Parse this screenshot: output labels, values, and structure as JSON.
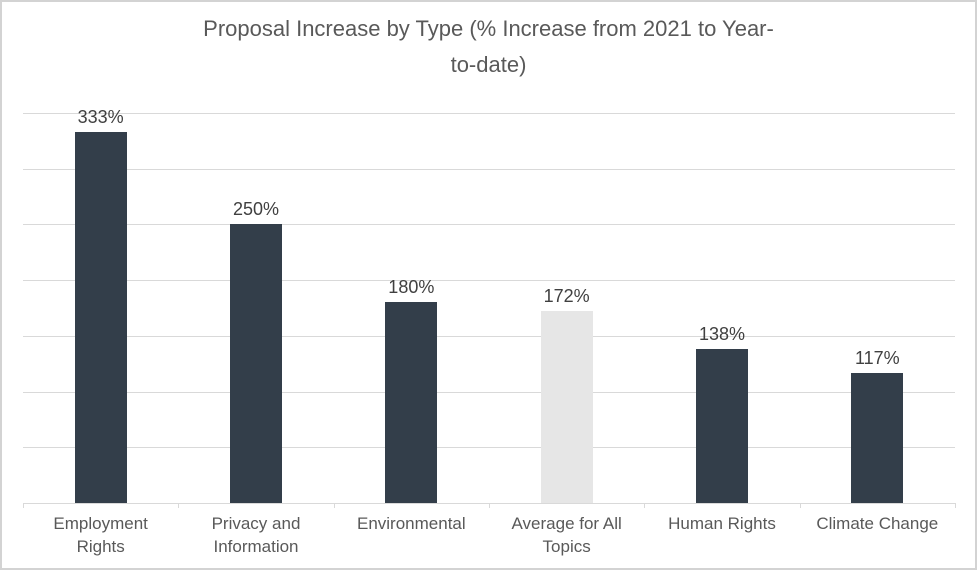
{
  "chart_data": {
    "type": "bar",
    "title": "Proposal Increase by Type (% Increase from 2021 to Year-to-date)",
    "title_lines": [
      "Proposal Increase by Type (% Increase from 2021 to Year-",
      "to-date)"
    ],
    "categories": [
      "Employment Rights",
      "Privacy and Information",
      "Environmental",
      "Average for All Topics",
      "Human Rights",
      "Climate Change"
    ],
    "values": [
      333,
      250,
      180,
      172,
      138,
      117
    ],
    "data_labels": [
      "333%",
      "250%",
      "180%",
      "172%",
      "138%",
      "117%"
    ],
    "xlabel": "",
    "ylabel": "",
    "ylim": [
      0,
      350
    ],
    "gridline_step": 50,
    "grid": true,
    "legend": "none",
    "y_axis_tick_labels_visible": false,
    "highlight_index": 3,
    "colors": {
      "bar": "#333e4a",
      "highlight_bar": "#e6e6e6",
      "gridline": "#d9d9d9",
      "axis": "#d9d9d9",
      "title_text": "#595959",
      "data_label_text": "#404040",
      "category_label_text": "#595959",
      "frame_border": "#d3d3d3",
      "background": "#ffffff"
    }
  }
}
